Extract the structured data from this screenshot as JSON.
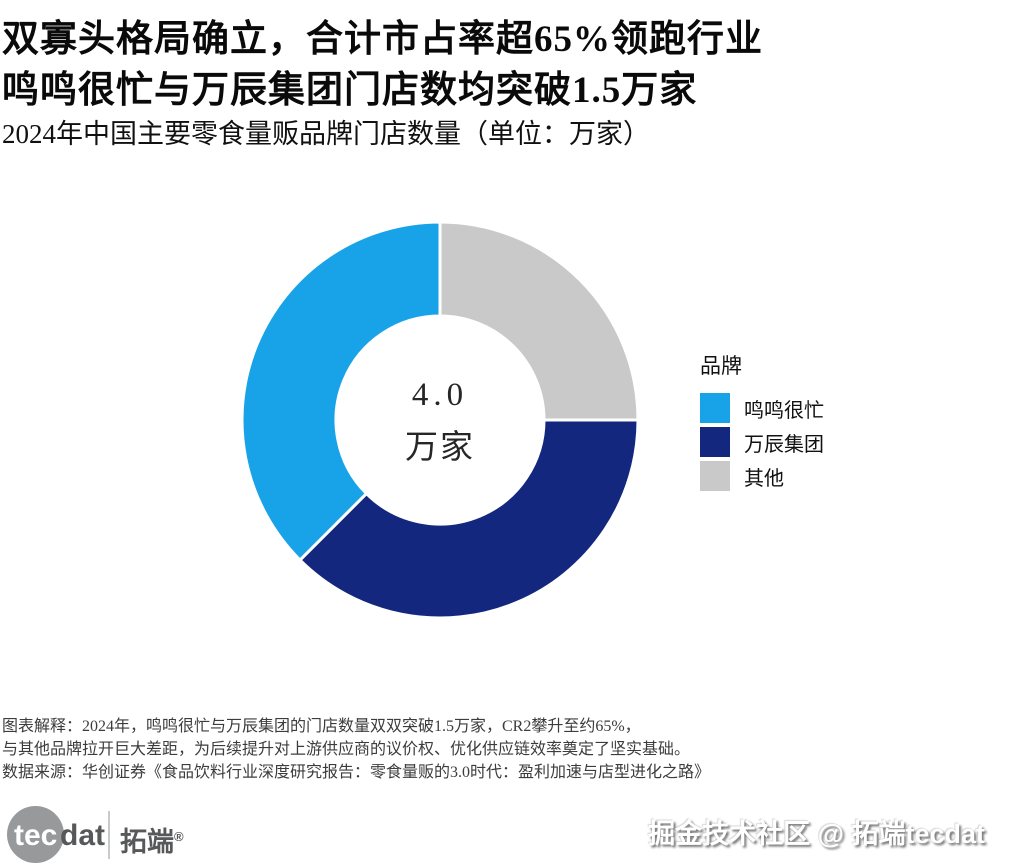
{
  "header": {
    "title_line1": "双寡头格局确立，合计市占率超65%领跑行业",
    "title_line2": "鸣鸣很忙与万辰集团门店数均突破1.5万家",
    "subtitle": "2024年中国主要零食量贩品牌门店数量（单位：万家）"
  },
  "chart_data": {
    "type": "pie",
    "variant": "donut",
    "title": "2024年中国主要零食量贩品牌门店数量（单位：万家）",
    "unit": "万家",
    "categories": [
      "鸣鸣很忙",
      "万辰集团",
      "其他"
    ],
    "values": [
      1.5,
      1.5,
      1.0
    ],
    "shares_pct": [
      37.5,
      37.5,
      25.0
    ],
    "colors": [
      "#18a3e8",
      "#13277f",
      "#c9c9c9"
    ],
    "total": 4.0,
    "center_label": {
      "value": "4.0",
      "unit": "万家"
    },
    "legend_title": "品牌",
    "legend_position": "right",
    "start_angle_deg_clockwise_from_top": 0,
    "clockwise_visual_order": [
      "其他",
      "万辰集团",
      "鸣鸣很忙"
    ]
  },
  "legend": {
    "title": "品牌",
    "items": [
      {
        "label": "鸣鸣很忙",
        "color": "#18a3e8"
      },
      {
        "label": "万辰集团",
        "color": "#13277f"
      },
      {
        "label": "其他",
        "color": "#c9c9c9"
      }
    ]
  },
  "notes": {
    "line1": "图表解释：2024年，鸣鸣很忙与万辰集团的门店数量双双突破1.5万家，CR2攀升至约65%，",
    "line2": "与其他品牌拉开巨大差距，为后续提升对上游供应商的议价权、优化供应链效率奠定了坚实基础。",
    "line3": "数据来源：华创证券《食品饮料行业深度研究报告：零食量贩的3.0时代：盈利加速与店型进化之路》"
  },
  "footer": {
    "logo_tec": "tec",
    "logo_dat": "dat",
    "logo_cn": "拓端",
    "logo_reg": "®",
    "watermark": "掘金技术社区 @ 拓端tecdat"
  }
}
